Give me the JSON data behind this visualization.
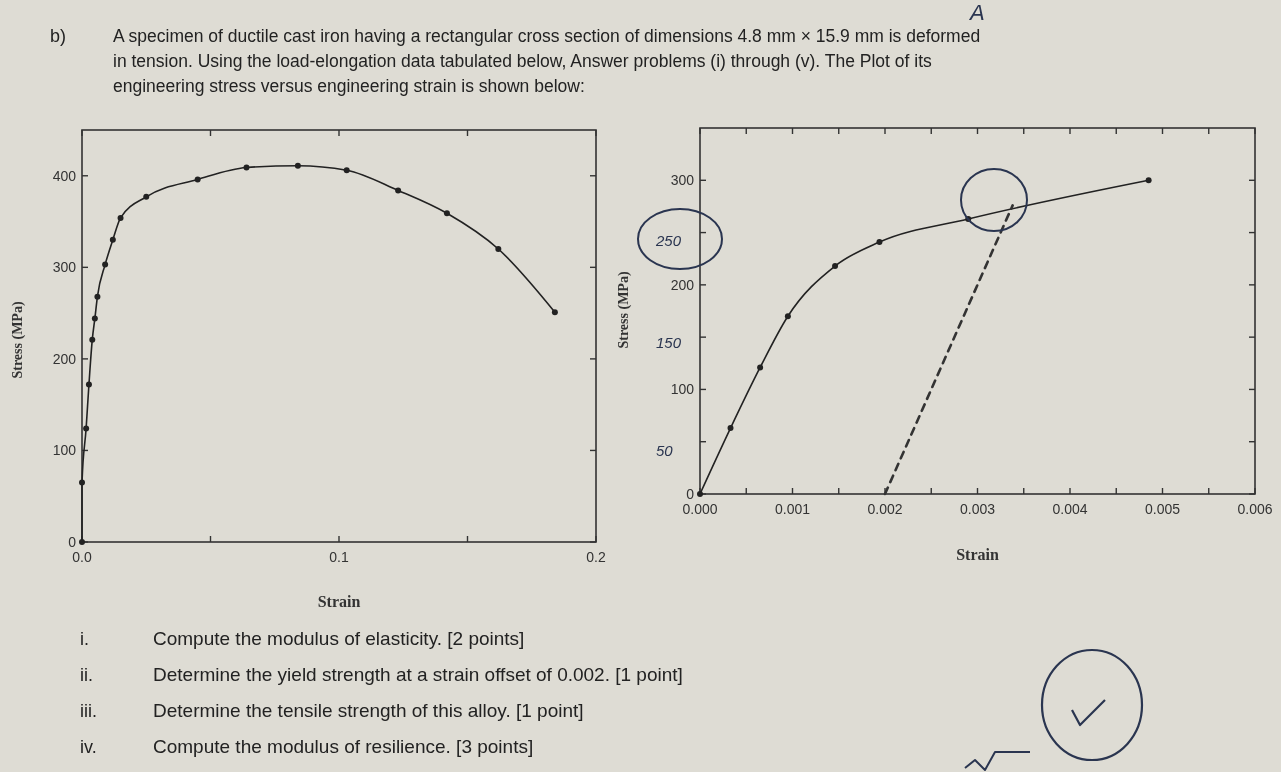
{
  "chart_data": [
    {
      "type": "line",
      "xlabel": "Strain",
      "ylabel": "Stress (MPa)",
      "xlim": [
        0,
        0.2
      ],
      "ylim": [
        0,
        450
      ],
      "xticks": [
        {
          "value": 0,
          "label": "0.0"
        },
        {
          "value": 0.05,
          "label": null
        },
        0.1,
        {
          "value": 0.15,
          "label": null
        },
        0.2
      ],
      "yticks": [
        0,
        100,
        200,
        300,
        400
      ],
      "marker": "circle",
      "line_style": "solid",
      "series": [
        {
          "color": "#222222",
          "x": [
            0,
            0,
            0.0016,
            0.0027,
            0.004,
            0.005,
            0.006,
            0.009,
            0.012,
            0.015,
            0.025,
            0.045,
            0.064,
            0.084,
            0.103,
            0.123,
            0.142,
            0.162,
            0.184
          ],
          "values": [
            0,
            65,
            124,
            172,
            221,
            244,
            268,
            303,
            330,
            354,
            377,
            396,
            409,
            411,
            406,
            384,
            359,
            320,
            251
          ]
        }
      ],
      "annotations": [
        "b)",
        "A specimen of ductile cast iron having a rectangular cross section of dimensions 4.8 mm × 15.9 mm is deformed",
        "in tension.  Using the load-elongation data tabulated below, Answer problems (i) through (v). The Plot of its",
        "engineering stress versus engineering strain is shown below:",
        "i.  Compute the modulus of elasticity. [2 points]",
        "ii.  Determine the yield strength at a strain offset of 0.002. [1 point]",
        "iii.  Determine the tensile strength of this alloy. [1 point]",
        "iv.  Compute the modulus of resilience. [3 points]"
      ]
    },
    {
      "type": "line",
      "xlabel": "Strain",
      "ylabel": "Stress (MPa)",
      "xlim": [
        0,
        0.006
      ],
      "ylim": [
        0,
        350
      ],
      "xticks": [
        {
          "value": 0,
          "label": "0.000"
        },
        {
          "value": 0.0005,
          "label": null
        },
        {
          "value": 0.001,
          "label": "0.001"
        },
        {
          "value": 0.0015,
          "label": null
        },
        {
          "value": 0.002,
          "label": "0.002"
        },
        {
          "value": 0.0025,
          "label": null
        },
        {
          "value": 0.003,
          "label": "0.003"
        },
        {
          "value": 0.0035,
          "label": null
        },
        {
          "value": 0.004,
          "label": "0.004"
        },
        {
          "value": 0.0045,
          "label": null
        },
        {
          "value": 0.005,
          "label": "0.005"
        },
        {
          "value": 0.0055,
          "label": null
        },
        {
          "value": 0.006,
          "label": "0.006"
        }
      ],
      "yticks": [
        0,
        {
          "value": 50,
          "label": null
        },
        100,
        {
          "value": 150,
          "label": null
        },
        200,
        {
          "value": 250,
          "label": null
        },
        300
      ],
      "series": [
        {
          "color": "#222222",
          "marker": "circle",
          "line_style": "solid",
          "x": [
            0,
            0.00033,
            0.00065,
            0.00095,
            0.00146,
            0.00194,
            0.0029,
            0.00485
          ],
          "values": [
            0,
            63,
            121,
            170,
            218,
            241,
            263,
            300
          ]
        },
        {
          "color": "#333333",
          "marker": "none",
          "line_style": "dashed",
          "x": [
            0.002,
            0.00338
          ],
          "values": [
            0,
            276
          ]
        }
      ],
      "annotations": [
        "A",
        "250",
        "150",
        "50"
      ]
    }
  ]
}
